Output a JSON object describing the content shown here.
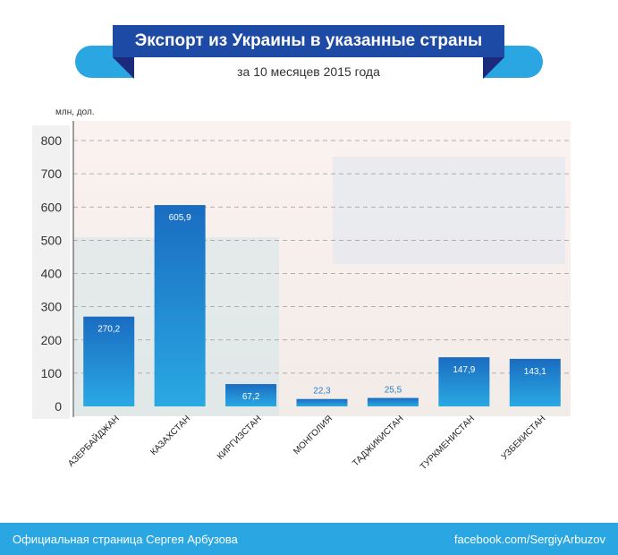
{
  "header": {
    "title": "Экспорт из Украины в указанные страны",
    "subtitle": "за 10 месяцев 2015 года"
  },
  "footer": {
    "left_text": "Официальная страница Сергея Арбузова",
    "right_text": "facebook.com/SergiyArbuzov"
  },
  "colors": {
    "bar_top": "#1a6cc1",
    "bar_bottom": "#2aa9e3",
    "title_bg": "#1c4aa5",
    "ribbon": "#2aa7e2"
  },
  "chart_data": {
    "type": "bar",
    "title": "Экспорт из Украины в указанные страны",
    "subtitle": "за 10 месяцев 2015 года",
    "ylabel": "млн, дол.",
    "xlabel": "",
    "ylim": [
      0,
      800
    ],
    "yticks": [
      0,
      100,
      200,
      300,
      400,
      500,
      600,
      700,
      800
    ],
    "grid": true,
    "categories": [
      "АЗЕРБАЙДЖАН",
      "КАЗАХСТАН",
      "КИРГИЗСТАН",
      "МОНГОЛИЯ",
      "ТАДЖИКИСТАН",
      "ТУРКМЕНИСТАН",
      "УЗБЕКИСТАН"
    ],
    "values": [
      270.2,
      605.9,
      67.2,
      22.3,
      25.5,
      147.9,
      143.1
    ],
    "value_labels": [
      "270,2",
      "605,9",
      "67,2",
      "22,3",
      "25,5",
      "147,9",
      "143,1"
    ]
  }
}
